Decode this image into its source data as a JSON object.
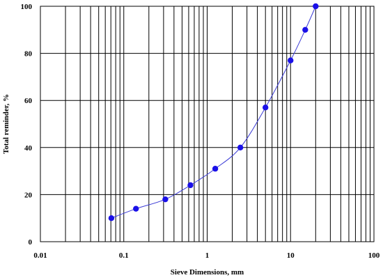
{
  "chart_data": {
    "type": "scatter",
    "xlabel": "Sieve Dimensions, mm",
    "ylabel": "Total reminder, %",
    "xscale": "log",
    "xlim": [
      0.01,
      100
    ],
    "ylim": [
      0,
      100
    ],
    "x_ticks": [
      {
        "value": 0.01,
        "label": "0.01"
      },
      {
        "value": 0.1,
        "label": "0.1"
      },
      {
        "value": 1,
        "label": "1"
      },
      {
        "value": 10,
        "label": "10"
      },
      {
        "value": 100,
        "label": "100"
      }
    ],
    "y_ticks": [
      {
        "value": 0,
        "label": "0"
      },
      {
        "value": 20,
        "label": "20"
      },
      {
        "value": 40,
        "label": "40"
      },
      {
        "value": 60,
        "label": "60"
      },
      {
        "value": 80,
        "label": "80"
      },
      {
        "value": 100,
        "label": "100"
      }
    ],
    "grid": true,
    "marker_color": "#1a10e8",
    "line_color": "#3b3bd6",
    "series": [
      {
        "x": [
          0.071,
          0.14,
          0.315,
          0.63,
          1.25,
          2.5,
          5,
          10,
          15,
          20
        ],
        "y": [
          10,
          14,
          18,
          24,
          31,
          40,
          57,
          77,
          90,
          100
        ]
      }
    ]
  }
}
